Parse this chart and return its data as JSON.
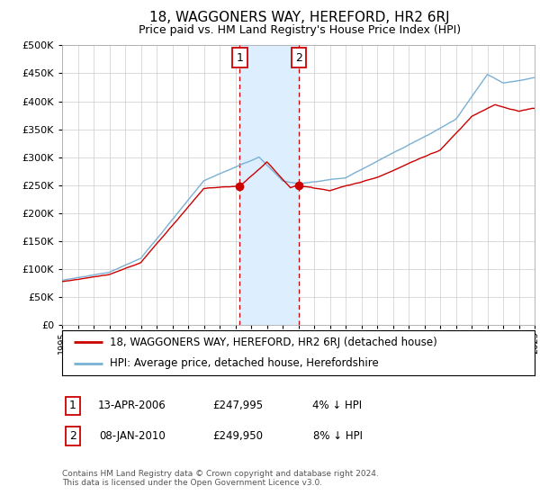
{
  "title": "18, WAGGONERS WAY, HEREFORD, HR2 6RJ",
  "subtitle": "Price paid vs. HM Land Registry's House Price Index (HPI)",
  "x_start_year": 1995,
  "x_end_year": 2025,
  "y_min": 0,
  "y_max": 500000,
  "y_ticks": [
    0,
    50000,
    100000,
    150000,
    200000,
    250000,
    300000,
    350000,
    400000,
    450000,
    500000
  ],
  "sale1_date": 2006.28,
  "sale1_price": 247995,
  "sale1_label": "1",
  "sale2_date": 2010.03,
  "sale2_price": 249950,
  "sale2_label": "2",
  "legend_line1": "18, WAGGONERS WAY, HEREFORD, HR2 6RJ (detached house)",
  "legend_line2": "HPI: Average price, detached house, Herefordshire",
  "ann1_date": "13-APR-2006",
  "ann1_price": "£247,995",
  "ann1_pct": "4% ↓ HPI",
  "ann2_date": "08-JAN-2010",
  "ann2_price": "£249,950",
  "ann2_pct": "8% ↓ HPI",
  "footer": "Contains HM Land Registry data © Crown copyright and database right 2024.\nThis data is licensed under the Open Government Licence v3.0.",
  "sale_color": "#cc0000",
  "hpi_color": "#7ab0d4",
  "shade_color": "#ddeeff",
  "grid_color": "#cccccc",
  "background_color": "#ffffff"
}
